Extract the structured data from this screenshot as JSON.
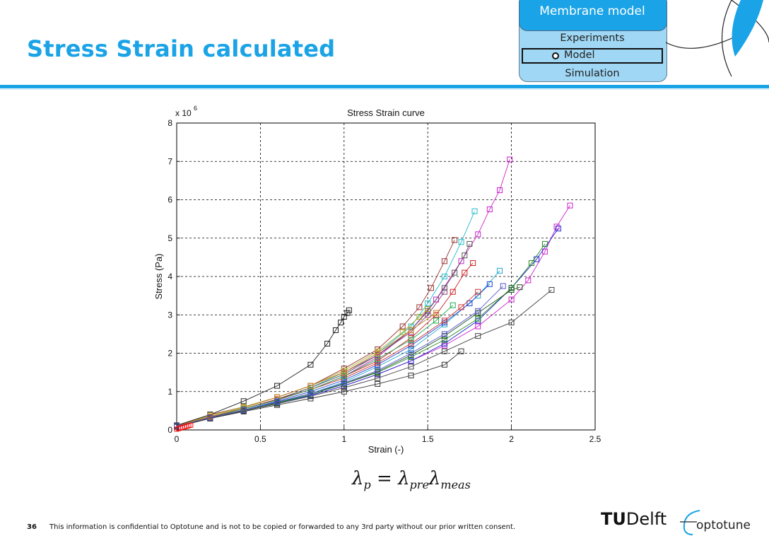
{
  "slide": {
    "title": "Stress Strain calculated",
    "page_number": "36",
    "confidential_notice": "This information is confidential to Optotune and is not to be copied or forwarded to any 3rd party without our prior written consent.",
    "accent_color": "#1aa3e6"
  },
  "nav": {
    "section": "Membrane model",
    "items": [
      "Experiments",
      "Model",
      "Simulation"
    ],
    "active": "Model"
  },
  "logos": {
    "tudelft_prefix": "TU",
    "tudelft_suffix": "Delft",
    "optotune": "optotune"
  },
  "formula": {
    "lhs_symbol": "λ",
    "lhs_sub": "p",
    "equals": "=",
    "rhs1_symbol": "λ",
    "rhs1_sub": "pre",
    "rhs2_symbol": "λ",
    "rhs2_sub": "meas"
  },
  "chart_data": {
    "type": "line",
    "title": "Stress Strain curve",
    "xlabel": "Strain (-)",
    "ylabel": "Stress (Pa)",
    "y_multiplier_label": "x 10",
    "y_multiplier_exponent": "6",
    "xlim": [
      0,
      2.5
    ],
    "ylim": [
      0,
      8
    ],
    "xticks": [
      "0",
      "0.5",
      "1",
      "1.5",
      "2",
      "2.5"
    ],
    "yticks": [
      "0",
      "1",
      "2",
      "3",
      "4",
      "5",
      "6",
      "7",
      "8"
    ],
    "grid": true,
    "marker": "square",
    "series": [
      {
        "color": "#cc22cc",
        "x": [
          0.0,
          0.2,
          0.4,
          0.6,
          0.8,
          1.0,
          1.2,
          1.4,
          1.55,
          1.7,
          1.8,
          1.87,
          1.93,
          1.99
        ],
        "y": [
          0.1,
          0.35,
          0.55,
          0.8,
          1.05,
          1.4,
          1.9,
          2.6,
          3.4,
          4.4,
          5.1,
          5.75,
          6.25,
          7.05
        ]
      },
      {
        "color": "#22bbcc",
        "x": [
          0.0,
          0.2,
          0.4,
          0.6,
          0.8,
          1.0,
          1.2,
          1.4,
          1.5,
          1.6,
          1.7,
          1.78
        ],
        "y": [
          0.1,
          0.35,
          0.55,
          0.8,
          1.1,
          1.5,
          2.0,
          2.7,
          3.3,
          4.0,
          4.9,
          5.7
        ]
      },
      {
        "color": "#993333",
        "x": [
          0.0,
          0.2,
          0.4,
          0.6,
          0.8,
          1.0,
          1.2,
          1.35,
          1.45,
          1.52,
          1.6,
          1.66
        ],
        "y": [
          0.1,
          0.4,
          0.6,
          0.85,
          1.15,
          1.6,
          2.1,
          2.7,
          3.2,
          3.7,
          4.4,
          4.95
        ]
      },
      {
        "color": "#555555",
        "x": [
          0.0,
          0.2,
          0.4,
          0.6,
          0.8,
          1.0,
          1.2,
          1.4,
          1.5,
          1.6,
          1.66,
          1.72,
          1.75
        ],
        "y": [
          0.1,
          0.35,
          0.55,
          0.8,
          1.1,
          1.45,
          1.95,
          2.6,
          3.1,
          3.7,
          4.1,
          4.55,
          4.85
        ]
      },
      {
        "color": "#cc2222",
        "x": [
          0.0,
          0.2,
          0.4,
          0.6,
          0.8,
          1.0,
          1.2,
          1.4,
          1.55,
          1.65,
          1.72,
          1.77
        ],
        "y": [
          0.1,
          0.35,
          0.55,
          0.8,
          1.05,
          1.4,
          1.8,
          2.4,
          3.0,
          3.6,
          4.1,
          4.35
        ]
      },
      {
        "color": "#22aacc",
        "x": [
          0.0,
          0.2,
          0.4,
          0.6,
          0.8,
          1.0,
          1.2,
          1.4,
          1.6,
          1.8,
          1.93
        ],
        "y": [
          0.1,
          0.3,
          0.5,
          0.7,
          0.95,
          1.25,
          1.65,
          2.1,
          2.75,
          3.5,
          4.15
        ]
      },
      {
        "color": "#222222",
        "x": [
          0.0,
          0.2,
          0.4,
          0.6,
          0.8,
          0.9,
          0.95,
          0.98,
          1.0,
          1.02,
          1.03
        ],
        "y": [
          0.12,
          0.4,
          0.75,
          1.15,
          1.7,
          2.25,
          2.6,
          2.8,
          2.95,
          3.05,
          3.12
        ]
      },
      {
        "color": "#cc22cc",
        "x": [
          0.0,
          0.2,
          0.4,
          0.6,
          0.8,
          1.0,
          1.2,
          1.4,
          1.6,
          1.8,
          2.0,
          2.1,
          2.2,
          2.27,
          2.35
        ],
        "y": [
          0.1,
          0.3,
          0.5,
          0.7,
          0.9,
          1.15,
          1.45,
          1.8,
          2.2,
          2.7,
          3.4,
          3.9,
          4.65,
          5.3,
          5.85
        ]
      },
      {
        "color": "#2222cc",
        "x": [
          0.0,
          0.2,
          0.4,
          0.6,
          0.8,
          1.0,
          1.2,
          1.4,
          1.6,
          1.8,
          2.0,
          2.15,
          2.28
        ],
        "y": [
          0.1,
          0.3,
          0.5,
          0.7,
          0.9,
          1.15,
          1.45,
          1.8,
          2.25,
          2.85,
          3.7,
          4.45,
          5.25
        ]
      },
      {
        "color": "#228822",
        "x": [
          0.0,
          0.2,
          0.4,
          0.6,
          0.8,
          1.0,
          1.2,
          1.4,
          1.6,
          1.8,
          2.0,
          2.12,
          2.2
        ],
        "y": [
          0.1,
          0.3,
          0.5,
          0.7,
          0.92,
          1.2,
          1.5,
          1.9,
          2.35,
          2.9,
          3.7,
          4.35,
          4.85
        ]
      },
      {
        "color": "#444444",
        "x": [
          0.0,
          0.2,
          0.4,
          0.6,
          0.8,
          1.0,
          1.2,
          1.4,
          1.6,
          1.8,
          2.0,
          2.24
        ],
        "y": [
          0.1,
          0.3,
          0.5,
          0.68,
          0.88,
          1.1,
          1.35,
          1.65,
          2.05,
          2.45,
          2.8,
          3.65
        ]
      },
      {
        "color": "#2244cc",
        "x": [
          0.0,
          0.2,
          0.4,
          0.6,
          0.8,
          1.0,
          1.2,
          1.4,
          1.6,
          1.75,
          1.87
        ],
        "y": [
          0.1,
          0.32,
          0.52,
          0.75,
          1.0,
          1.3,
          1.7,
          2.2,
          2.8,
          3.3,
          3.8
        ]
      },
      {
        "color": "#cc3333",
        "x": [
          0.0,
          0.2,
          0.4,
          0.6,
          0.8,
          1.0,
          1.2,
          1.4,
          1.6,
          1.7,
          1.8
        ],
        "y": [
          0.1,
          0.33,
          0.55,
          0.78,
          1.05,
          1.35,
          1.75,
          2.25,
          2.85,
          3.2,
          3.6
        ]
      },
      {
        "color": "#aaaa22",
        "x": [
          0.0,
          0.2,
          0.4,
          0.6,
          0.8,
          1.0,
          1.2,
          1.35,
          1.45,
          1.5
        ],
        "y": [
          0.1,
          0.38,
          0.6,
          0.85,
          1.15,
          1.55,
          2.05,
          2.55,
          2.95,
          3.15
        ]
      },
      {
        "color": "#22aa55",
        "x": [
          0.0,
          0.2,
          0.4,
          0.6,
          0.8,
          1.0,
          1.2,
          1.4,
          1.55,
          1.65
        ],
        "y": [
          0.1,
          0.35,
          0.55,
          0.78,
          1.05,
          1.4,
          1.85,
          2.35,
          2.85,
          3.25
        ]
      },
      {
        "color": "#333333",
        "x": [
          0.0,
          0.2,
          0.4,
          0.6,
          0.8,
          1.0,
          1.2,
          1.4,
          1.6,
          1.7
        ],
        "y": [
          0.08,
          0.3,
          0.48,
          0.65,
          0.82,
          1.0,
          1.2,
          1.42,
          1.7,
          2.05
        ]
      },
      {
        "color": "#884488",
        "x": [
          0.0,
          0.2,
          0.4,
          0.6,
          0.8,
          1.0,
          1.2,
          1.4,
          1.5,
          1.6
        ],
        "y": [
          0.1,
          0.35,
          0.58,
          0.85,
          1.15,
          1.5,
          1.95,
          2.55,
          3.0,
          3.6
        ]
      },
      {
        "color": "#cc8822",
        "x": [
          0.0,
          0.2,
          0.4,
          0.6,
          0.8,
          1.0,
          1.2,
          1.4,
          1.55
        ],
        "y": [
          0.1,
          0.35,
          0.58,
          0.85,
          1.15,
          1.5,
          2.0,
          2.6,
          3.05
        ]
      },
      {
        "color": "#225522",
        "x": [
          0.0,
          0.2,
          0.4,
          0.6,
          0.8,
          1.0,
          1.2,
          1.4,
          1.6,
          1.8,
          2.0,
          2.05
        ],
        "y": [
          0.1,
          0.32,
          0.52,
          0.72,
          0.95,
          1.2,
          1.52,
          1.95,
          2.45,
          3.05,
          3.65,
          3.72
        ]
      },
      {
        "color": "#5555cc",
        "x": [
          0.0,
          0.2,
          0.4,
          0.6,
          0.8,
          1.0,
          1.2,
          1.4,
          1.6,
          1.8,
          1.95
        ],
        "y": [
          0.1,
          0.32,
          0.52,
          0.73,
          0.95,
          1.22,
          1.55,
          2.0,
          2.5,
          3.1,
          3.75
        ]
      }
    ]
  }
}
